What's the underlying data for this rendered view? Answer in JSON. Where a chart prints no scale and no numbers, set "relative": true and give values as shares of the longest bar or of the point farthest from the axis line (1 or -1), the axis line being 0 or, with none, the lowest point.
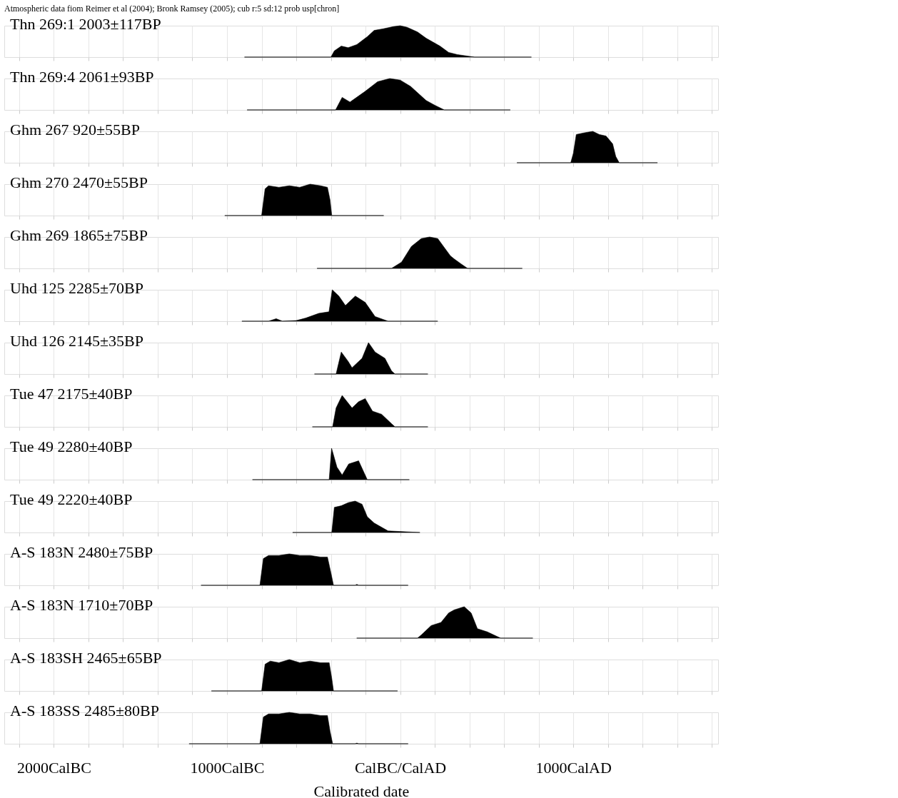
{
  "chart_data": [
    {
      "type": "area",
      "relative": true,
      "annotations": [
        "Atmospheric data fiom Reimer et al (2004); Bronk Ramsey (2005); cub r:5 sd:12 prob usp[chron]"
      ],
      "xlim": [
        -2286,
        1836
      ],
      "xticks": [
        {
          "value": -2200,
          "label": null
        },
        {
          "value": -2000,
          "label": null
        },
        {
          "value": -1800,
          "label": null
        },
        {
          "value": -1600,
          "label": null
        },
        {
          "value": -1400,
          "label": null
        },
        {
          "value": -1200,
          "label": null
        },
        {
          "value": -1000,
          "label": null
        },
        {
          "value": -800,
          "label": null
        },
        {
          "value": -600,
          "label": null
        },
        {
          "value": -400,
          "label": null
        },
        {
          "value": -200,
          "label": null
        },
        {
          "value": 0,
          "label": null
        },
        {
          "value": 200,
          "label": null
        },
        {
          "value": 400,
          "label": null
        },
        {
          "value": 600,
          "label": null
        },
        {
          "value": 800,
          "label": null
        },
        {
          "value": 1000,
          "label": null
        },
        {
          "value": 1200,
          "label": null
        },
        {
          "value": 1400,
          "label": null
        },
        {
          "value": 1600,
          "label": null
        },
        {
          "value": 1800,
          "label": null
        }
      ],
      "grid": "x",
      "tick_labels": false,
      "series": [
        {
          "name": "Thn 269:1  2003±117BP",
          "color": "#000000",
          "x": [
            -899,
            -400,
            -380,
            -340,
            -300,
            -250,
            -190,
            -150,
            -100,
            -40,
            0,
            40,
            100,
            150,
            230,
            280,
            330,
            430,
            758
          ],
          "values": [
            0,
            0,
            0.2,
            0.35,
            0.3,
            0.4,
            0.65,
            0.85,
            0.9,
            0.97,
            1,
            0.95,
            0.8,
            0.6,
            0.35,
            0.15,
            0.08,
            0,
            0
          ]
        }
      ]
    },
    {
      "type": "area",
      "relative": true,
      "xlim": [
        -2286,
        1836
      ],
      "xticks": [
        {
          "value": -2200,
          "label": null
        },
        {
          "value": -2000,
          "label": null
        },
        {
          "value": -1800,
          "label": null
        },
        {
          "value": -1600,
          "label": null
        },
        {
          "value": -1400,
          "label": null
        },
        {
          "value": -1200,
          "label": null
        },
        {
          "value": -1000,
          "label": null
        },
        {
          "value": -800,
          "label": null
        },
        {
          "value": -600,
          "label": null
        },
        {
          "value": -400,
          "label": null
        },
        {
          "value": -200,
          "label": null
        },
        {
          "value": 0,
          "label": null
        },
        {
          "value": 200,
          "label": null
        },
        {
          "value": 400,
          "label": null
        },
        {
          "value": 600,
          "label": null
        },
        {
          "value": 800,
          "label": null
        },
        {
          "value": 1000,
          "label": null
        },
        {
          "value": 1200,
          "label": null
        },
        {
          "value": 1400,
          "label": null
        },
        {
          "value": 1600,
          "label": null
        },
        {
          "value": 1800,
          "label": null
        }
      ],
      "grid": "x",
      "tick_labels": false,
      "series": [
        {
          "name": "Thn 269:4  2061±93BP",
          "color": "#000000",
          "x": [
            -884,
            -373,
            -335,
            -290,
            -200,
            -130,
            -60,
            0,
            60,
            110,
            150,
            200,
            255,
            636
          ],
          "values": [
            0,
            0,
            0.4,
            0.25,
            0.6,
            0.9,
            1,
            0.95,
            0.75,
            0.5,
            0.3,
            0.15,
            0,
            0
          ]
        }
      ]
    },
    {
      "type": "area",
      "relative": true,
      "xlim": [
        -2286,
        1836
      ],
      "xticks": [
        {
          "value": -2200,
          "label": null
        },
        {
          "value": -2000,
          "label": null
        },
        {
          "value": -1800,
          "label": null
        },
        {
          "value": -1600,
          "label": null
        },
        {
          "value": -1400,
          "label": null
        },
        {
          "value": -1200,
          "label": null
        },
        {
          "value": -1000,
          "label": null
        },
        {
          "value": -800,
          "label": null
        },
        {
          "value": -600,
          "label": null
        },
        {
          "value": -400,
          "label": null
        },
        {
          "value": -200,
          "label": null
        },
        {
          "value": 0,
          "label": null
        },
        {
          "value": 200,
          "label": null
        },
        {
          "value": 400,
          "label": null
        },
        {
          "value": 600,
          "label": null
        },
        {
          "value": 800,
          "label": null
        },
        {
          "value": 1000,
          "label": null
        },
        {
          "value": 1200,
          "label": null
        },
        {
          "value": 1400,
          "label": null
        },
        {
          "value": 1600,
          "label": null
        },
        {
          "value": 1800,
          "label": null
        }
      ],
      "grid": "x",
      "tick_labels": false,
      "series": [
        {
          "name": "Ghm 267  920±55BP",
          "color": "#000000",
          "x": [
            674,
            985,
            1000,
            1017,
            1060,
            1112,
            1150,
            1189,
            1227,
            1245,
            1265,
            1486
          ],
          "values": [
            0,
            0,
            0.3,
            0.9,
            0.95,
            1,
            0.9,
            0.85,
            0.6,
            0.2,
            0,
            0
          ]
        }
      ]
    },
    {
      "type": "area",
      "relative": true,
      "xlim": [
        -2286,
        1836
      ],
      "xticks": [
        {
          "value": -2200,
          "label": null
        },
        {
          "value": -2000,
          "label": null
        },
        {
          "value": -1800,
          "label": null
        },
        {
          "value": -1600,
          "label": null
        },
        {
          "value": -1400,
          "label": null
        },
        {
          "value": -1200,
          "label": null
        },
        {
          "value": -1000,
          "label": null
        },
        {
          "value": -800,
          "label": null
        },
        {
          "value": -600,
          "label": null
        },
        {
          "value": -400,
          "label": null
        },
        {
          "value": -200,
          "label": null
        },
        {
          "value": 0,
          "label": null
        },
        {
          "value": 200,
          "label": null
        },
        {
          "value": 400,
          "label": null
        },
        {
          "value": 600,
          "label": null
        },
        {
          "value": 800,
          "label": null
        },
        {
          "value": 1000,
          "label": null
        },
        {
          "value": 1200,
          "label": null
        },
        {
          "value": 1400,
          "label": null
        },
        {
          "value": 1600,
          "label": null
        },
        {
          "value": 1800,
          "label": null
        }
      ],
      "grid": "x",
      "tick_labels": false,
      "series": [
        {
          "name": "Ghm 270  2470±55BP",
          "color": "#000000",
          "x": [
            -1013,
            -800,
            -780,
            -760,
            -700,
            -640,
            -580,
            -520,
            -460,
            -420,
            -405,
            -395,
            -95
          ],
          "values": [
            0,
            0,
            0.85,
            0.95,
            0.9,
            0.95,
            0.9,
            1,
            0.95,
            0.9,
            0.5,
            0,
            0
          ]
        }
      ]
    },
    {
      "type": "area",
      "relative": true,
      "xlim": [
        -2286,
        1836
      ],
      "xticks": [
        {
          "value": -2200,
          "label": null
        },
        {
          "value": -2000,
          "label": null
        },
        {
          "value": -1800,
          "label": null
        },
        {
          "value": -1600,
          "label": null
        },
        {
          "value": -1400,
          "label": null
        },
        {
          "value": -1200,
          "label": null
        },
        {
          "value": -1000,
          "label": null
        },
        {
          "value": -800,
          "label": null
        },
        {
          "value": -600,
          "label": null
        },
        {
          "value": -400,
          "label": null
        },
        {
          "value": -200,
          "label": null
        },
        {
          "value": 0,
          "label": null
        },
        {
          "value": 200,
          "label": null
        },
        {
          "value": 400,
          "label": null
        },
        {
          "value": 600,
          "label": null
        },
        {
          "value": 800,
          "label": null
        },
        {
          "value": 1000,
          "label": null
        },
        {
          "value": 1200,
          "label": null
        },
        {
          "value": 1400,
          "label": null
        },
        {
          "value": 1600,
          "label": null
        },
        {
          "value": 1800,
          "label": null
        }
      ],
      "grid": "x",
      "tick_labels": false,
      "series": [
        {
          "name": "Ghm 269  1865±75BP",
          "color": "#000000",
          "x": [
            -480,
            -50,
            8,
            65,
            122,
            170,
            217,
            250,
            290,
            312,
            350,
            389,
            705
          ],
          "values": [
            0,
            0,
            0.2,
            0.7,
            0.95,
            1,
            0.95,
            0.7,
            0.4,
            0.3,
            0.15,
            0,
            0
          ]
        }
      ]
    },
    {
      "type": "area",
      "relative": true,
      "xlim": [
        -2286,
        1836
      ],
      "xticks": [
        {
          "value": -2200,
          "label": null
        },
        {
          "value": -2000,
          "label": null
        },
        {
          "value": -1800,
          "label": null
        },
        {
          "value": -1600,
          "label": null
        },
        {
          "value": -1400,
          "label": null
        },
        {
          "value": -1200,
          "label": null
        },
        {
          "value": -1000,
          "label": null
        },
        {
          "value": -800,
          "label": null
        },
        {
          "value": -600,
          "label": null
        },
        {
          "value": -400,
          "label": null
        },
        {
          "value": -200,
          "label": null
        },
        {
          "value": 0,
          "label": null
        },
        {
          "value": 200,
          "label": null
        },
        {
          "value": 400,
          "label": null
        },
        {
          "value": 600,
          "label": null
        },
        {
          "value": 800,
          "label": null
        },
        {
          "value": 1000,
          "label": null
        },
        {
          "value": 1200,
          "label": null
        },
        {
          "value": 1400,
          "label": null
        },
        {
          "value": 1600,
          "label": null
        },
        {
          "value": 1800,
          "label": null
        }
      ],
      "grid": "x",
      "tick_labels": false,
      "series": [
        {
          "name": "Uhd 125  2285±70BP",
          "color": "#000000",
          "x": [
            -914,
            -760,
            -716,
            -680,
            -600,
            -545,
            -470,
            -411,
            -392,
            -354,
            -316,
            -259,
            -202,
            -145,
            -70,
            217
          ],
          "values": [
            0,
            0,
            0.08,
            0,
            0.02,
            0.1,
            0.25,
            0.3,
            1,
            0.8,
            0.5,
            0.8,
            0.6,
            0.15,
            0,
            0
          ]
        }
      ]
    },
    {
      "type": "area",
      "relative": true,
      "xlim": [
        -2286,
        1836
      ],
      "xticks": [
        {
          "value": -2200,
          "label": null
        },
        {
          "value": -2000,
          "label": null
        },
        {
          "value": -1800,
          "label": null
        },
        {
          "value": -1600,
          "label": null
        },
        {
          "value": -1400,
          "label": null
        },
        {
          "value": -1200,
          "label": null
        },
        {
          "value": -1000,
          "label": null
        },
        {
          "value": -800,
          "label": null
        },
        {
          "value": -600,
          "label": null
        },
        {
          "value": -400,
          "label": null
        },
        {
          "value": -200,
          "label": null
        },
        {
          "value": 0,
          "label": null
        },
        {
          "value": 200,
          "label": null
        },
        {
          "value": 400,
          "label": null
        },
        {
          "value": 600,
          "label": null
        },
        {
          "value": 800,
          "label": null
        },
        {
          "value": 1000,
          "label": null
        },
        {
          "value": 1200,
          "label": null
        },
        {
          "value": 1400,
          "label": null
        },
        {
          "value": 1600,
          "label": null
        },
        {
          "value": 1800,
          "label": null
        }
      ],
      "grid": "x",
      "tick_labels": false,
      "series": [
        {
          "name": "Uhd 126  2145±35BP",
          "color": "#000000",
          "x": [
            -495,
            -370,
            -340,
            -300,
            -278,
            -220,
            -183,
            -145,
            -88,
            -50,
            -30,
            160
          ],
          "values": [
            0,
            0,
            0.7,
            0.4,
            0.2,
            0.5,
            1,
            0.7,
            0.5,
            0.1,
            0,
            0
          ]
        }
      ]
    },
    {
      "type": "area",
      "relative": true,
      "xlim": [
        -2286,
        1836
      ],
      "xticks": [
        {
          "value": -2200,
          "label": null
        },
        {
          "value": -2000,
          "label": null
        },
        {
          "value": -1800,
          "label": null
        },
        {
          "value": -1600,
          "label": null
        },
        {
          "value": -1400,
          "label": null
        },
        {
          "value": -1200,
          "label": null
        },
        {
          "value": -1000,
          "label": null
        },
        {
          "value": -800,
          "label": null
        },
        {
          "value": -600,
          "label": null
        },
        {
          "value": -400,
          "label": null
        },
        {
          "value": -200,
          "label": null
        },
        {
          "value": 0,
          "label": null
        },
        {
          "value": 200,
          "label": null
        },
        {
          "value": 400,
          "label": null
        },
        {
          "value": 600,
          "label": null
        },
        {
          "value": 800,
          "label": null
        },
        {
          "value": 1000,
          "label": null
        },
        {
          "value": 1200,
          "label": null
        },
        {
          "value": 1400,
          "label": null
        },
        {
          "value": 1600,
          "label": null
        },
        {
          "value": 1800,
          "label": null
        }
      ],
      "grid": "x",
      "tick_labels": false,
      "series": [
        {
          "name": "Tue 47  2175±40BP",
          "color": "#000000",
          "x": [
            -507,
            -390,
            -370,
            -335,
            -278,
            -240,
            -202,
            -160,
            -107,
            -50,
            -30,
            160
          ],
          "values": [
            0,
            0,
            0.6,
            1,
            0.6,
            0.8,
            0.9,
            0.5,
            0.4,
            0.1,
            0,
            0
          ]
        }
      ]
    },
    {
      "type": "area",
      "relative": true,
      "xlim": [
        -2286,
        1836
      ],
      "xticks": [
        {
          "value": -2200,
          "label": null
        },
        {
          "value": -2000,
          "label": null
        },
        {
          "value": -1800,
          "label": null
        },
        {
          "value": -1600,
          "label": null
        },
        {
          "value": -1400,
          "label": null
        },
        {
          "value": -1200,
          "label": null
        },
        {
          "value": -1000,
          "label": null
        },
        {
          "value": -800,
          "label": null
        },
        {
          "value": -600,
          "label": null
        },
        {
          "value": -400,
          "label": null
        },
        {
          "value": -200,
          "label": null
        },
        {
          "value": 0,
          "label": null
        },
        {
          "value": 200,
          "label": null
        },
        {
          "value": 400,
          "label": null
        },
        {
          "value": 600,
          "label": null
        },
        {
          "value": 800,
          "label": null
        },
        {
          "value": 1000,
          "label": null
        },
        {
          "value": 1200,
          "label": null
        },
        {
          "value": 1400,
          "label": null
        },
        {
          "value": 1600,
          "label": null
        },
        {
          "value": 1800,
          "label": null
        }
      ],
      "grid": "x",
      "tick_labels": false,
      "series": [
        {
          "name": "Tue 49  2280±40BP",
          "color": "#000000",
          "x": [
            -853,
            -410,
            -396,
            -365,
            -335,
            -297,
            -240,
            -215,
            -190,
            53
          ],
          "values": [
            0,
            0,
            1,
            0.4,
            0.15,
            0.5,
            0.6,
            0.3,
            0,
            0
          ]
        }
      ]
    },
    {
      "type": "area",
      "relative": true,
      "xlim": [
        -2286,
        1836
      ],
      "xticks": [
        {
          "value": -2200,
          "label": null
        },
        {
          "value": -2000,
          "label": null
        },
        {
          "value": -1800,
          "label": null
        },
        {
          "value": -1600,
          "label": null
        },
        {
          "value": -1400,
          "label": null
        },
        {
          "value": -1200,
          "label": null
        },
        {
          "value": -1000,
          "label": null
        },
        {
          "value": -800,
          "label": null
        },
        {
          "value": -600,
          "label": null
        },
        {
          "value": -400,
          "label": null
        },
        {
          "value": -200,
          "label": null
        },
        {
          "value": 0,
          "label": null
        },
        {
          "value": 200,
          "label": null
        },
        {
          "value": 400,
          "label": null
        },
        {
          "value": 600,
          "label": null
        },
        {
          "value": 800,
          "label": null
        },
        {
          "value": 1000,
          "label": null
        },
        {
          "value": 1200,
          "label": null
        },
        {
          "value": 1400,
          "label": null
        },
        {
          "value": 1600,
          "label": null
        },
        {
          "value": 1800,
          "label": null
        }
      ],
      "grid": "x",
      "tick_labels": false,
      "series": [
        {
          "name": "Tue 49  2220±40BP",
          "color": "#000000",
          "x": [
            -621,
            -395,
            -380,
            -340,
            -300,
            -260,
            -220,
            -190,
            -150,
            -70,
            114
          ],
          "values": [
            0,
            0,
            0.8,
            0.85,
            0.95,
            1,
            0.9,
            0.5,
            0.3,
            0.05,
            0
          ]
        }
      ]
    },
    {
      "type": "area",
      "relative": true,
      "xlim": [
        -2286,
        1836
      ],
      "xticks": [
        {
          "value": -2200,
          "label": null
        },
        {
          "value": -2000,
          "label": null
        },
        {
          "value": -1800,
          "label": null
        },
        {
          "value": -1600,
          "label": null
        },
        {
          "value": -1400,
          "label": null
        },
        {
          "value": -1200,
          "label": null
        },
        {
          "value": -1000,
          "label": null
        },
        {
          "value": -800,
          "label": null
        },
        {
          "value": -600,
          "label": null
        },
        {
          "value": -400,
          "label": null
        },
        {
          "value": -200,
          "label": null
        },
        {
          "value": 0,
          "label": null
        },
        {
          "value": 200,
          "label": null
        },
        {
          "value": 400,
          "label": null
        },
        {
          "value": 600,
          "label": null
        },
        {
          "value": 800,
          "label": null
        },
        {
          "value": 1000,
          "label": null
        },
        {
          "value": 1200,
          "label": null
        },
        {
          "value": 1400,
          "label": null
        },
        {
          "value": 1600,
          "label": null
        },
        {
          "value": 1800,
          "label": null
        }
      ],
      "grid": "x",
      "tick_labels": false,
      "series": [
        {
          "name": "A-S 183N  2480±75BP",
          "color": "#000000",
          "x": [
            -1150,
            -810,
            -790,
            -760,
            -700,
            -640,
            -580,
            -520,
            -460,
            -420,
            -400,
            -385,
            -260,
            -250,
            -240,
            46
          ],
          "values": [
            0,
            0,
            0.85,
            0.95,
            0.95,
            1,
            0.95,
            0.95,
            0.9,
            0.9,
            0.4,
            0,
            0,
            0.03,
            0,
            0
          ]
        }
      ]
    },
    {
      "type": "area",
      "relative": true,
      "xlim": [
        -2286,
        1836
      ],
      "xticks": [
        {
          "value": -2200,
          "label": null
        },
        {
          "value": -2000,
          "label": null
        },
        {
          "value": -1800,
          "label": null
        },
        {
          "value": -1600,
          "label": null
        },
        {
          "value": -1400,
          "label": null
        },
        {
          "value": -1200,
          "label": null
        },
        {
          "value": -1000,
          "label": null
        },
        {
          "value": -800,
          "label": null
        },
        {
          "value": -600,
          "label": null
        },
        {
          "value": -400,
          "label": null
        },
        {
          "value": -200,
          "label": null
        },
        {
          "value": 0,
          "label": null
        },
        {
          "value": 200,
          "label": null
        },
        {
          "value": 400,
          "label": null
        },
        {
          "value": 600,
          "label": null
        },
        {
          "value": 800,
          "label": null
        },
        {
          "value": 1000,
          "label": null
        },
        {
          "value": 1200,
          "label": null
        },
        {
          "value": 1400,
          "label": null
        },
        {
          "value": 1600,
          "label": null
        },
        {
          "value": 1800,
          "label": null
        }
      ],
      "grid": "x",
      "tick_labels": false,
      "series": [
        {
          "name": "A-S 183N  1710±70BP",
          "color": "#000000",
          "x": [
            -251,
            100,
            122,
            179,
            236,
            280,
            312,
            370,
            410,
            446,
            503,
            541,
            580,
            766
          ],
          "values": [
            0,
            0,
            0.1,
            0.4,
            0.5,
            0.8,
            0.9,
            1,
            0.8,
            0.3,
            0.2,
            0.1,
            0,
            0
          ]
        }
      ]
    },
    {
      "type": "area",
      "relative": true,
      "xlim": [
        -2286,
        1836
      ],
      "xticks": [
        {
          "value": -2200,
          "label": null
        },
        {
          "value": -2000,
          "label": null
        },
        {
          "value": -1800,
          "label": null
        },
        {
          "value": -1600,
          "label": null
        },
        {
          "value": -1400,
          "label": null
        },
        {
          "value": -1200,
          "label": null
        },
        {
          "value": -1000,
          "label": null
        },
        {
          "value": -800,
          "label": null
        },
        {
          "value": -600,
          "label": null
        },
        {
          "value": -400,
          "label": null
        },
        {
          "value": -200,
          "label": null
        },
        {
          "value": 0,
          "label": null
        },
        {
          "value": 200,
          "label": null
        },
        {
          "value": 400,
          "label": null
        },
        {
          "value": 600,
          "label": null
        },
        {
          "value": 800,
          "label": null
        },
        {
          "value": 1000,
          "label": null
        },
        {
          "value": 1200,
          "label": null
        },
        {
          "value": 1400,
          "label": null
        },
        {
          "value": 1600,
          "label": null
        },
        {
          "value": 1800,
          "label": null
        }
      ],
      "grid": "x",
      "tick_labels": false,
      "series": [
        {
          "name": "A-S 183SH  2465±65BP",
          "color": "#000000",
          "x": [
            -1090,
            -800,
            -780,
            -750,
            -700,
            -640,
            -580,
            -520,
            -460,
            -410,
            -395,
            -385,
            -15
          ],
          "values": [
            0,
            0,
            0.85,
            0.95,
            0.9,
            1,
            0.9,
            0.95,
            0.9,
            0.9,
            0.4,
            0,
            0
          ]
        }
      ]
    },
    {
      "type": "area",
      "relative": true,
      "xlim": [
        -2286,
        1836
      ],
      "xticks": [
        {
          "value": -2200,
          "label": null
        },
        {
          "value": -2000,
          "label": "2000CalBC"
        },
        {
          "value": -1800,
          "label": null
        },
        {
          "value": -1600,
          "label": null
        },
        {
          "value": -1400,
          "label": null
        },
        {
          "value": -1200,
          "label": null
        },
        {
          "value": -1000,
          "label": "1000CalBC"
        },
        {
          "value": -800,
          "label": null
        },
        {
          "value": -600,
          "label": null
        },
        {
          "value": -400,
          "label": null
        },
        {
          "value": -200,
          "label": null
        },
        {
          "value": 0,
          "label": "CalBC/CalAD"
        },
        {
          "value": 200,
          "label": null
        },
        {
          "value": 400,
          "label": null
        },
        {
          "value": 600,
          "label": null
        },
        {
          "value": 800,
          "label": null
        },
        {
          "value": 1000,
          "label": "1000CalAD"
        },
        {
          "value": 1200,
          "label": null
        },
        {
          "value": 1400,
          "label": null
        },
        {
          "value": 1600,
          "label": null
        },
        {
          "value": 1800,
          "label": null
        }
      ],
      "grid": "x",
      "tick_labels": "x",
      "xlabel": "Calibrated date",
      "series": [
        {
          "name": "A-S 183SS  2485±80BP",
          "color": "#000000",
          "x": [
            -1219,
            -810,
            -790,
            -760,
            -700,
            -640,
            -580,
            -520,
            -460,
            -420,
            -405,
            -390,
            -260,
            -250,
            -240,
            46
          ],
          "values": [
            0,
            0,
            0.85,
            0.95,
            0.95,
            1,
            0.95,
            0.95,
            0.9,
            0.9,
            0.4,
            0,
            0,
            0.02,
            0,
            0
          ]
        }
      ]
    }
  ]
}
